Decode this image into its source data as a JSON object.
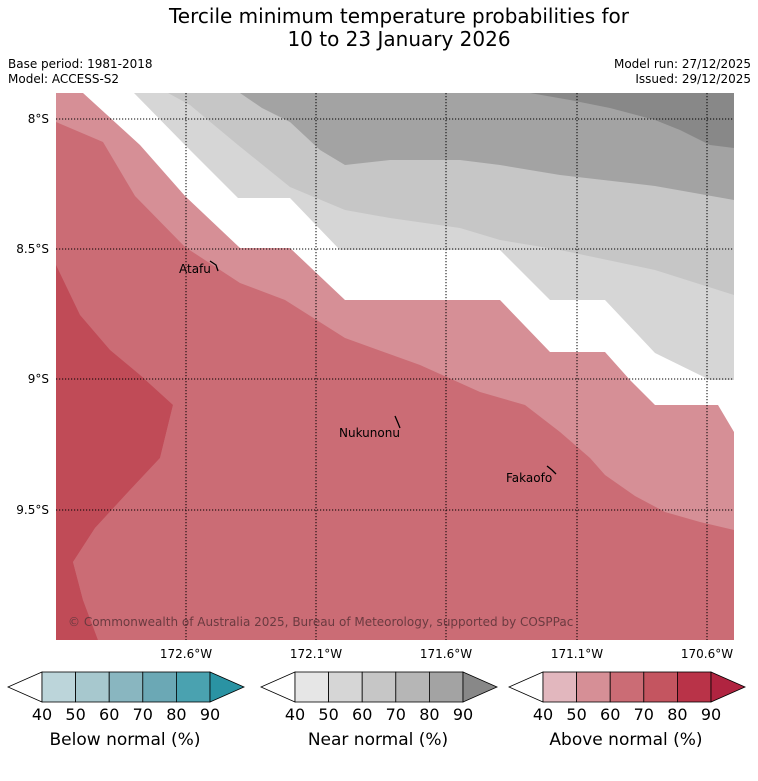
{
  "title": {
    "line1": "Tercile minimum temperature probabilities for",
    "line2": "10 to 23 January 2026"
  },
  "meta": {
    "base_period": "Base period: 1981-2018",
    "model": "Model: ACCESS-S2",
    "model_run": "Model run: 27/12/2025",
    "issued": "Issued: 29/12/2025"
  },
  "axes": {
    "lat_labels": [
      "8°S",
      "8.5°S",
      "9°S",
      "9.5°S"
    ],
    "lon_labels": [
      "172.6°W",
      "172.1°W",
      "171.6°W",
      "171.1°W",
      "170.6°W"
    ]
  },
  "places": [
    {
      "name": "Atafu"
    },
    {
      "name": "Nukunonu"
    },
    {
      "name": "Fakaofo"
    }
  ],
  "copyright": "© Commonwealth of Australia 2025, Bureau of Meteorology, supported by COSPPac",
  "colorbars": [
    {
      "name": "Below normal (%)",
      "ticks": [
        "40",
        "50",
        "60",
        "70",
        "80",
        "90"
      ],
      "colors": [
        "#ffffff",
        "#bcd5da",
        "#a7c8ce",
        "#89b6c0",
        "#6ba8b5",
        "#4aa2b0",
        "#2a93a3"
      ]
    },
    {
      "name": "Near normal (%)",
      "ticks": [
        "40",
        "50",
        "60",
        "70",
        "80",
        "90"
      ],
      "colors": [
        "#ffffff",
        "#e6e6e6",
        "#d6d6d6",
        "#c6c6c6",
        "#b6b6b6",
        "#a3a3a3",
        "#888888"
      ]
    },
    {
      "name": "Above normal (%)",
      "ticks": [
        "40",
        "50",
        "60",
        "70",
        "80",
        "90"
      ],
      "colors": [
        "#ffffff",
        "#e2b7be",
        "#d68f96",
        "#cb6c75",
        "#c45560",
        "#b93348",
        "#b02440"
      ]
    }
  ],
  "map_colors": {
    "near_40_50": "#d6d6d6",
    "near_50_60": "#c6c6c6",
    "near_60_70": "#a3a3a3",
    "near_70_80": "#888888",
    "above_50_60": "#d68f96",
    "above_60_70": "#cb6c75",
    "above_70_80": "#c04b57",
    "no_dominant": "#ffffff"
  }
}
